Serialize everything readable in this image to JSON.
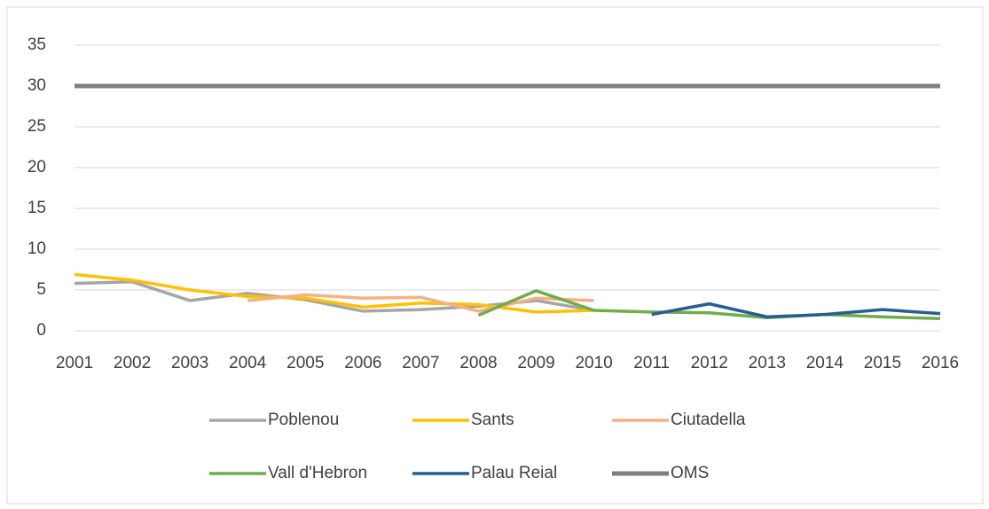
{
  "chart_data": {
    "type": "line",
    "categories": [
      "2001",
      "2002",
      "2003",
      "2004",
      "2005",
      "2006",
      "2007",
      "2008",
      "2009",
      "2010",
      "2011",
      "2012",
      "2013",
      "2014",
      "2015",
      "2016"
    ],
    "series": [
      {
        "name": "Poblenou",
        "color": "#a5a5a5",
        "values": [
          5.8,
          6.0,
          3.7,
          4.6,
          3.8,
          2.4,
          2.6,
          3.0,
          3.7,
          2.5,
          null,
          null,
          null,
          null,
          null,
          null
        ]
      },
      {
        "name": "Sants",
        "color": "#ffc000",
        "values": [
          6.9,
          6.2,
          5.0,
          4.2,
          4.0,
          2.9,
          3.4,
          3.2,
          2.3,
          2.5,
          null,
          null,
          null,
          null,
          null,
          null
        ]
      },
      {
        "name": "Ciutadella",
        "color": "#f4b183",
        "values": [
          null,
          null,
          null,
          3.7,
          4.4,
          4.0,
          4.1,
          2.4,
          4.0,
          3.7,
          null,
          null,
          null,
          null,
          null,
          null
        ]
      },
      {
        "name": "Vall d'Hebron",
        "color": "#70ad47",
        "values": [
          null,
          null,
          null,
          null,
          null,
          null,
          null,
          1.9,
          4.9,
          2.5,
          2.3,
          2.2,
          1.6,
          2.0,
          1.7,
          1.5
        ]
      },
      {
        "name": "Palau Reial",
        "color": "#255e91",
        "values": [
          null,
          null,
          null,
          null,
          null,
          null,
          null,
          null,
          null,
          null,
          2.0,
          3.3,
          1.7,
          2.0,
          2.6,
          2.1
        ]
      },
      {
        "name": "OMS",
        "color": "#7f7f7f",
        "values": [
          30,
          30,
          30,
          30,
          30,
          30,
          30,
          30,
          30,
          30,
          30,
          30,
          30,
          30,
          30,
          30
        ]
      }
    ],
    "ylim": [
      0,
      35
    ],
    "yticks": [
      0,
      5,
      10,
      15,
      20,
      25,
      30,
      35
    ],
    "grid": true
  }
}
